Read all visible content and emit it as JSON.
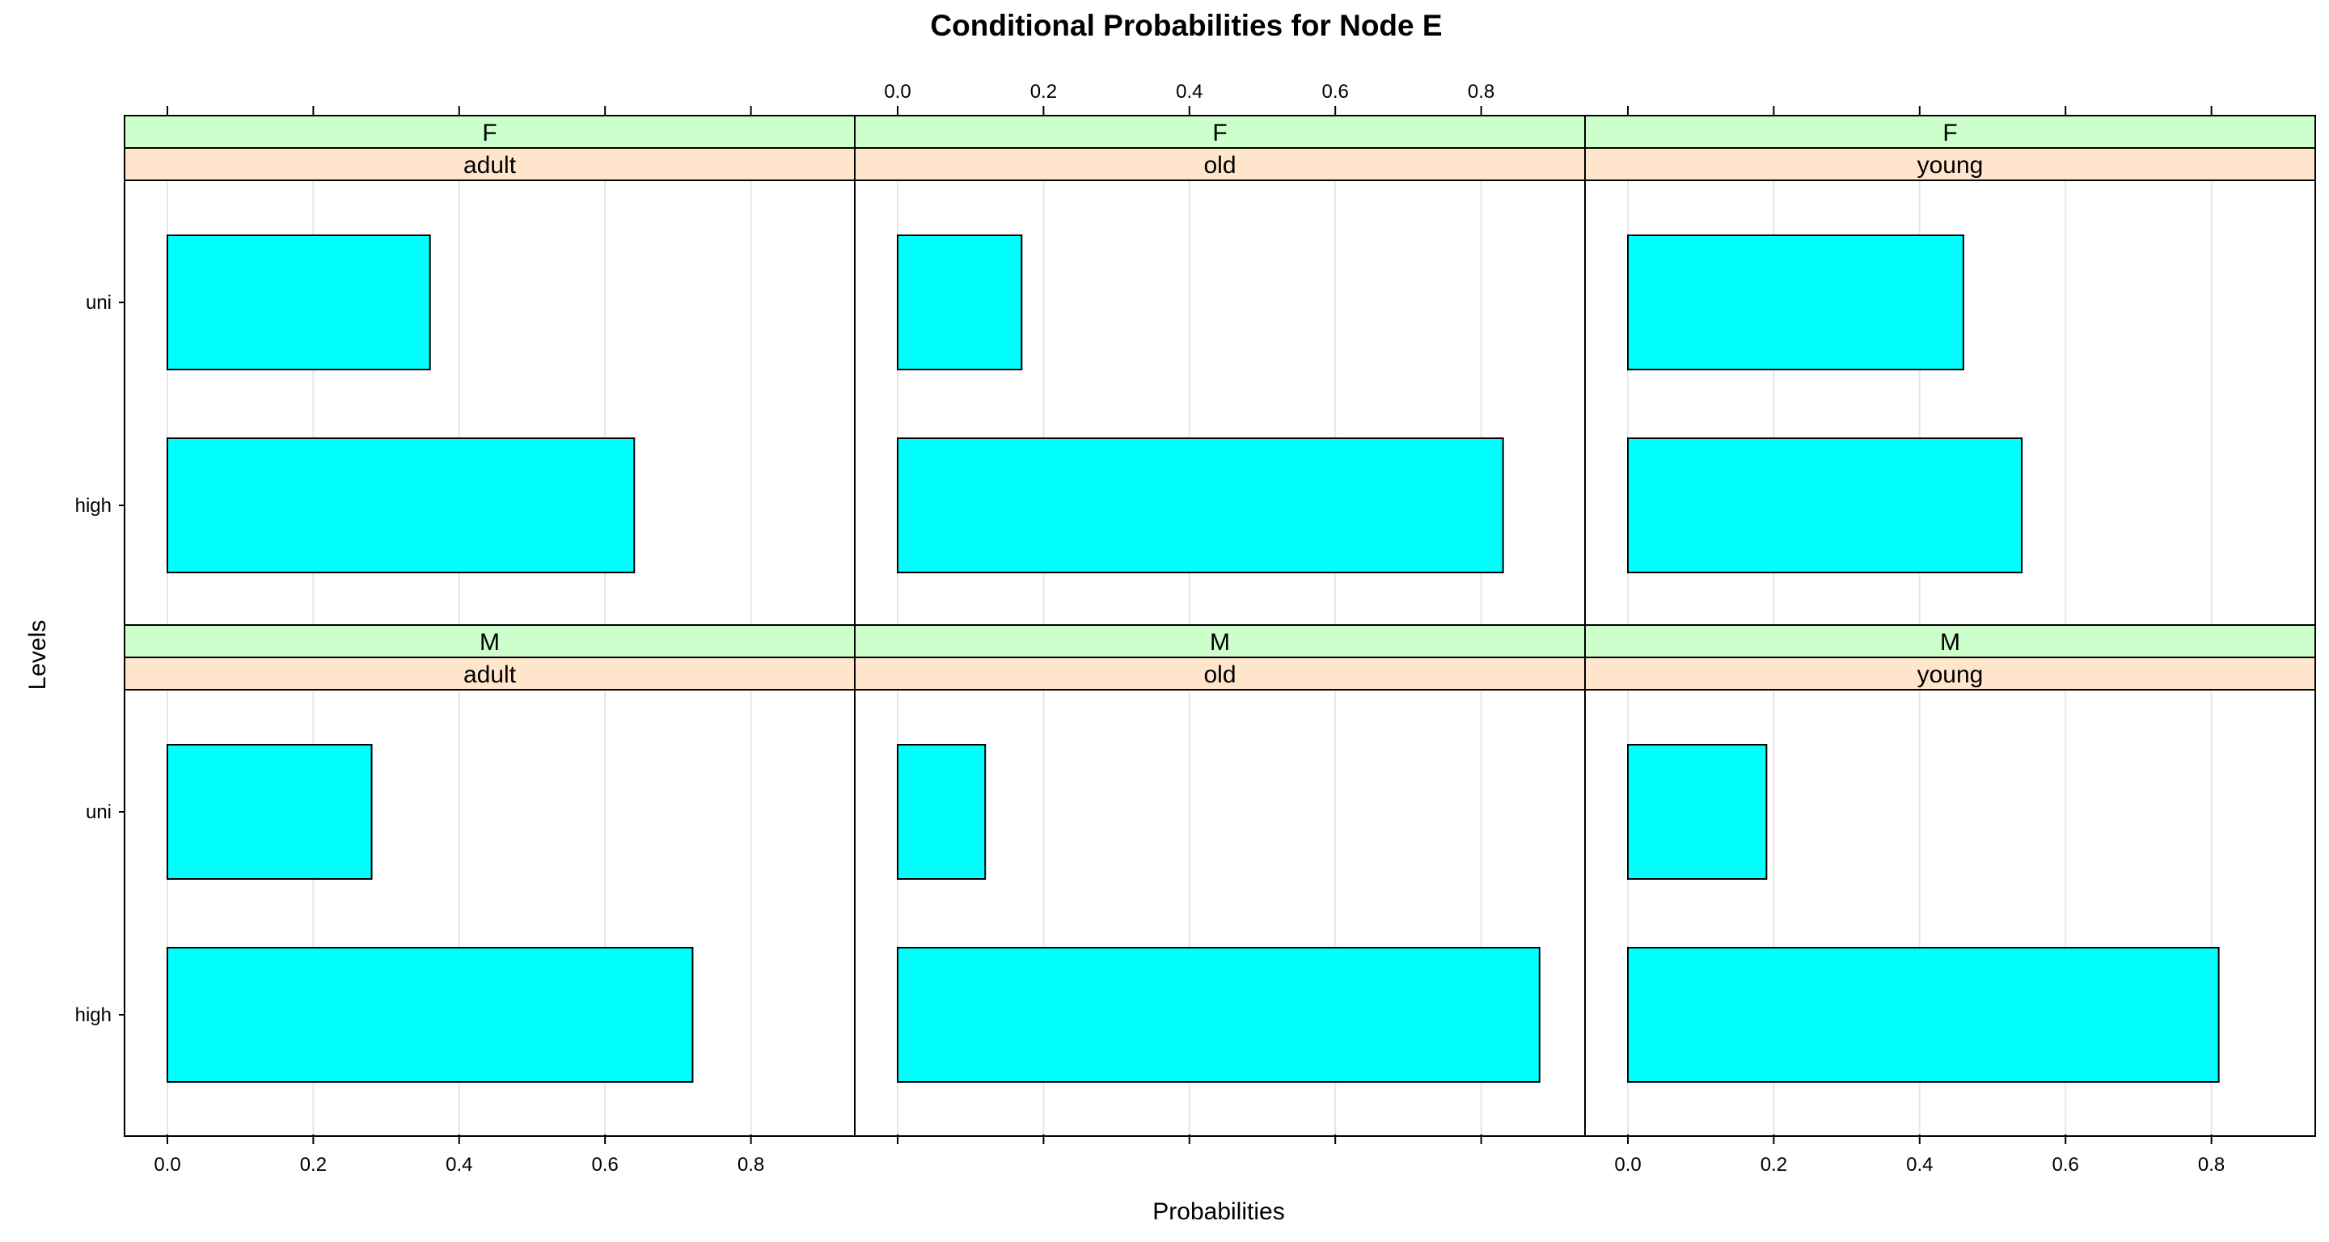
{
  "chart_data": {
    "type": "bar",
    "orientation": "horizontal",
    "title": "Conditional Probabilities for Node E",
    "xlabel": "Probabilities",
    "ylabel": "Levels",
    "categories": [
      "uni",
      "high"
    ],
    "xlim": [
      0,
      0.9
    ],
    "x_ticks": [
      "0.0",
      "0.2",
      "0.4",
      "0.6",
      "0.8"
    ],
    "grid": true,
    "colors": {
      "bar_fill": "#00FFFF",
      "strip_outer": "#CCFFCC",
      "strip_inner": "#FFE5CC",
      "gridline": "#E6E6E6"
    },
    "panels": [
      {
        "sex": "F",
        "age": "adult",
        "values": {
          "uni": 0.36,
          "high": 0.64
        }
      },
      {
        "sex": "F",
        "age": "old",
        "values": {
          "uni": 0.17,
          "high": 0.83
        }
      },
      {
        "sex": "F",
        "age": "young",
        "values": {
          "uni": 0.46,
          "high": 0.54
        }
      },
      {
        "sex": "M",
        "age": "adult",
        "values": {
          "uni": 0.28,
          "high": 0.72
        }
      },
      {
        "sex": "M",
        "age": "old",
        "values": {
          "uni": 0.12,
          "high": 0.88
        }
      },
      {
        "sex": "M",
        "age": "young",
        "values": {
          "uni": 0.19,
          "high": 0.81
        }
      }
    ]
  }
}
